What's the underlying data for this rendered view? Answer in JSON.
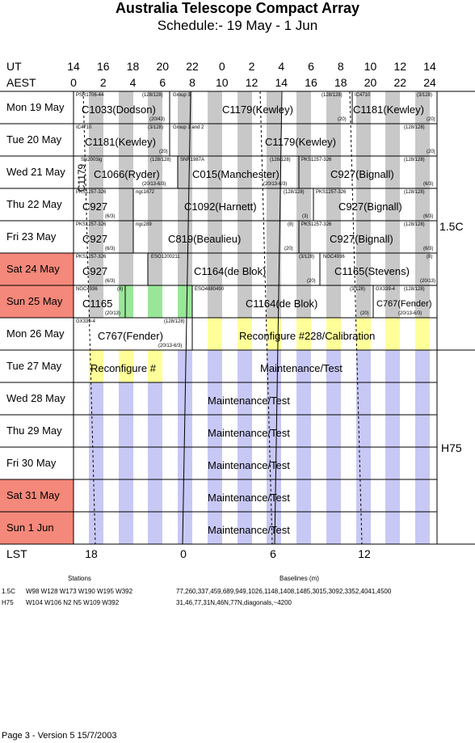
{
  "title": "Australia Telescope Compact Array",
  "subtitle": "Schedule:- 19 May - 1  Jun",
  "axes": {
    "ut_label": "UT",
    "aest_label": "AEST",
    "lst_label": "LST",
    "ut_ticks": [
      "14",
      "16",
      "18",
      "20",
      "22",
      "0",
      "2",
      "4",
      "6",
      "8",
      "10",
      "12",
      "14"
    ],
    "aest_ticks": [
      "0",
      "2",
      "4",
      "6",
      "8",
      "10",
      "12",
      "14",
      "16",
      "18",
      "20",
      "22",
      "24"
    ],
    "lst_ticks": [
      "18",
      "0",
      "6",
      "12"
    ]
  },
  "days": [
    {
      "label": "Mon  19 May",
      "weekend": false
    },
    {
      "label": "Tue  20 May",
      "weekend": false
    },
    {
      "label": "Wed 21 May",
      "weekend": false
    },
    {
      "label": "Thu  22 May",
      "weekend": false
    },
    {
      "label": "Fri   23 May",
      "weekend": false
    },
    {
      "label": "Sat  24 May",
      "weekend": true
    },
    {
      "label": "Sun  25 May",
      "weekend": true
    },
    {
      "label": "Mon  26 May",
      "weekend": false
    },
    {
      "label": "Tue  27 May",
      "weekend": false
    },
    {
      "label": "Wed 28 May",
      "weekend": false
    },
    {
      "label": "Thu  29 May",
      "weekend": false
    },
    {
      "label": "Fri   30 May",
      "weekend": false
    },
    {
      "label": "Sat  31 May",
      "weekend": true
    },
    {
      "label": "Sun   1  Jun",
      "weekend": true
    }
  ],
  "programs": [
    {
      "text": "C1033(Dodson)"
    },
    {
      "text": "C1179(Kewley)"
    },
    {
      "text": "C1181(Kewley)"
    },
    {
      "text": "C1181(Kewley)"
    },
    {
      "text": "C1179(Kewley)"
    },
    {
      "text": "C1066(Ryder)"
    },
    {
      "text": "C015(Manchester)"
    },
    {
      "text": "C927(Bignall)"
    },
    {
      "text": "C1179"
    },
    {
      "text": "C927"
    },
    {
      "text": "C1092(Harnett)"
    },
    {
      "text": "C927(Bignall)"
    },
    {
      "text": "C927"
    },
    {
      "text": "C819(Beaulieu)"
    },
    {
      "text": "C927(Bignall)"
    },
    {
      "text": "C927"
    },
    {
      "text": "C1164(de Blok)"
    },
    {
      "text": "C1165(Stevens)"
    },
    {
      "text": "C1165"
    },
    {
      "text": "C1164(de Blok)"
    },
    {
      "text": "C767(Fender)"
    },
    {
      "text": "C767(Fender)"
    },
    {
      "text": "Reconfigure #228/Calibration"
    },
    {
      "text": "Reconfigure #"
    },
    {
      "text": "Maintenance/Test"
    },
    {
      "text": "Maintenance/Test"
    },
    {
      "text": "Maintenance/Test"
    },
    {
      "text": "Maintenance/Test"
    },
    {
      "text": "Maintenance/Test"
    },
    {
      "text": "Maintenance/Test"
    }
  ],
  "small_labels": [
    {
      "text": "PSR1706-44"
    },
    {
      "text": "(128/128)"
    },
    {
      "text": "Group 3"
    },
    {
      "text": "(20/43)"
    },
    {
      "text": "(128/128)"
    },
    {
      "text": "IC4710"
    },
    {
      "text": "(3/128)"
    },
    {
      "text": "(20)"
    },
    {
      "text": "(20)"
    },
    {
      "text": "IC4710"
    },
    {
      "text": "(3/128)"
    },
    {
      "text": "Group 1 and 2"
    },
    {
      "text": "(128/128)"
    },
    {
      "text": "(20)"
    },
    {
      "text": "(20)"
    },
    {
      "text": "SN2003ig"
    },
    {
      "text": "(128/128)"
    },
    {
      "text": "SNR1987A"
    },
    {
      "text": "(128/128)"
    },
    {
      "text": "PKS1257-326"
    },
    {
      "text": "(128/128)"
    },
    {
      "text": "(20/13-6/3)"
    },
    {
      "text": "(20/13-6/3)"
    },
    {
      "text": "(6/3)"
    },
    {
      "text": "PKS1257-326"
    },
    {
      "text": "ngc1672"
    },
    {
      "text": "(128/128)"
    },
    {
      "text": "PKS1257-326"
    },
    {
      "text": "(128/128)"
    },
    {
      "text": "(6/3)"
    },
    {
      "text": "(3)"
    },
    {
      "text": "(6/3)"
    },
    {
      "text": "PKS1257-326"
    },
    {
      "text": "ngc289"
    },
    {
      "text": "(8)"
    },
    {
      "text": "PKS1257-326"
    },
    {
      "text": "(128/128)"
    },
    {
      "text": "(6/3)"
    },
    {
      "text": "(20)"
    },
    {
      "text": "(6/3)"
    },
    {
      "text": "PKS1257-326"
    },
    {
      "text": "ESO1200211"
    },
    {
      "text": "(3/128)"
    },
    {
      "text": "NGC4936"
    },
    {
      "text": "(8)"
    },
    {
      "text": "(6/3)"
    },
    {
      "text": "(20)"
    },
    {
      "text": "(20/13)"
    },
    {
      "text": "NGC4936"
    },
    {
      "text": "(8)"
    },
    {
      "text": "ESO4880490"
    },
    {
      "text": "(3/128)"
    },
    {
      "text": "GX339-4"
    },
    {
      "text": "(128/128)"
    },
    {
      "text": "(20/13)"
    },
    {
      "text": "(20)"
    },
    {
      "text": "(20/13-6/3)"
    },
    {
      "text": "GX339-4"
    },
    {
      "text": "(128/128)"
    },
    {
      "text": "(20/13-6/3)"
    }
  ],
  "configs": [
    {
      "text": "1.5C"
    },
    {
      "text": "H75"
    }
  ],
  "stations": {
    "heading": "Stations",
    "rows": [
      {
        "name": "1.5C",
        "stations": "W98 W128 W173 W190 W195 W392"
      },
      {
        "name": "H75",
        "stations": "W104 W106 N2 N5 W109 W392"
      }
    ]
  },
  "baselines": {
    "heading": "Baselines (m)",
    "rows": [
      "77,260,337,459,689,949,1026,1148,1408,1485,3015,3092,3352,4041,4500",
      "31,46,77,31N,46N,77N,diagonals,~4200"
    ]
  },
  "footer": "Page 3 - Version 5  15/7/2003",
  "colors": {
    "weekend": "#f4887a",
    "gray": "#c8c8c8",
    "green": "#99e699",
    "yellow": "#ffff99",
    "lavender": "#c8c8f5"
  }
}
